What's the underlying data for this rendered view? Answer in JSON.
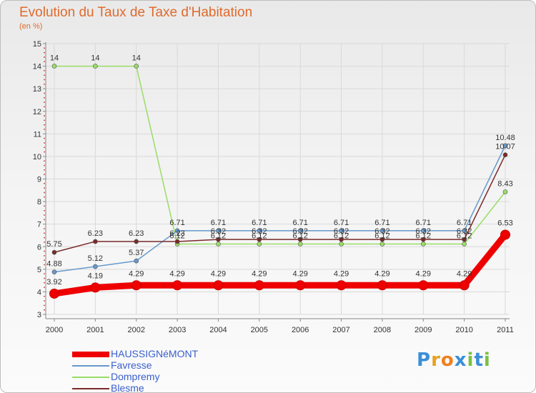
{
  "header": {
    "title": "Evolution du Taux de Taxe d'Habitation",
    "subtitle": "(en %)"
  },
  "chart_data": {
    "type": "line",
    "title": "Evolution du Taux de Taxe d'Habitation",
    "ylabel": "(en %)",
    "xlabel": "",
    "x": [
      "2000",
      "2001",
      "2002",
      "2003",
      "2004",
      "2005",
      "2006",
      "2007",
      "2008",
      "2009",
      "2010",
      "2011"
    ],
    "yticks": [
      "3",
      "4",
      "5",
      "6",
      "7",
      "8",
      "9",
      "10",
      "11",
      "12",
      "13",
      "14",
      "15"
    ],
    "ylim": [
      3,
      15
    ],
    "grid": true,
    "series": [
      {
        "name": "HAUSSIGNéMONT",
        "color": "#ee0000",
        "values": [
          3.92,
          4.19,
          4.29,
          4.29,
          4.29,
          4.29,
          4.29,
          4.29,
          4.29,
          4.29,
          4.29,
          6.53
        ],
        "labels": [
          "3.92",
          "4.19",
          "4.29",
          "4.29",
          "4.29",
          "4.29",
          "4.29",
          "4.29",
          "4.29",
          "4.29",
          "4.29",
          "6.53"
        ]
      },
      {
        "name": "Favresse",
        "color": "#6699cc",
        "values": [
          4.88,
          5.12,
          5.37,
          6.71,
          6.71,
          6.71,
          6.71,
          6.71,
          6.71,
          6.71,
          6.71,
          10.48
        ],
        "labels": [
          "4.88",
          "5.12",
          "5.37",
          "6.71",
          "6.71",
          "6.71",
          "6.71",
          "6.71",
          "6.71",
          "6.71",
          "6.71",
          "10.48"
        ]
      },
      {
        "name": "Dompremy",
        "color": "#99dd66",
        "values": [
          14,
          14,
          14,
          6.12,
          6.12,
          6.12,
          6.12,
          6.12,
          6.12,
          6.12,
          6.12,
          8.43
        ],
        "labels": [
          "14",
          "14",
          "14",
          "6.12",
          "6.12",
          "6.12",
          "6.12",
          "6.12",
          "6.12",
          "6.12",
          "6.12",
          "8.43"
        ]
      },
      {
        "name": "Blesme",
        "color": "#7a2a2a",
        "values": [
          5.75,
          6.23,
          6.23,
          6.23,
          6.32,
          6.32,
          6.32,
          6.32,
          6.32,
          6.32,
          6.32,
          10.07
        ],
        "labels": [
          "5.75",
          "6.23",
          "6.23",
          "6.23",
          "6.32",
          "6.32",
          "6.32",
          "6.32",
          "6.32",
          "6.32",
          "6.32",
          "10.07"
        ]
      }
    ]
  },
  "logo": {
    "letters": [
      "P",
      "r",
      "o",
      "x",
      "i",
      "t",
      "i"
    ],
    "colors": [
      "#3b8fd8",
      "#e8a020",
      "#f08020",
      "#3b8fd8",
      "#7ac143",
      "#3b8fd8",
      "#7ac143"
    ]
  }
}
